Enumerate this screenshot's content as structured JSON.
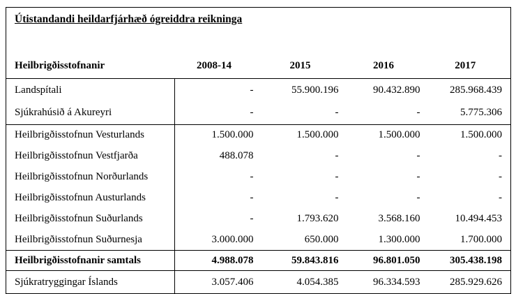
{
  "table": {
    "title": "Útistandandi heildarfjárhæð ógreiddra reikninga",
    "columns": [
      "Heilbrigðisstofnanir",
      "2008-14",
      "2015",
      "2016",
      "2017"
    ],
    "rows": [
      {
        "label": "Landspítali",
        "values": [
          "-",
          "55.900.196",
          "90.432.890",
          "285.968.439"
        ]
      },
      {
        "label": "Sjúkrahúsið á Akureyri",
        "values": [
          "-",
          "-",
          "-",
          "5.775.306"
        ]
      },
      {
        "label": "Heilbrigðisstofnun Vesturlands",
        "values": [
          "1.500.000",
          "1.500.000",
          "1.500.000",
          "1.500.000"
        ]
      },
      {
        "label": "Heilbrigðisstofnun Vestfjarða",
        "values": [
          "488.078",
          "-",
          "-",
          "-"
        ]
      },
      {
        "label": "Heilbrigðisstofnun Norðurlands",
        "values": [
          "-",
          "-",
          "-",
          "-"
        ]
      },
      {
        "label": "Heilbrigðisstofnun Austurlands",
        "values": [
          "-",
          "-",
          "-",
          "-"
        ]
      },
      {
        "label": "Heilbrigðisstofnun Suðurlands",
        "values": [
          "-",
          "1.793.620",
          "3.568.160",
          "10.494.453"
        ]
      },
      {
        "label": "Heilbrigðisstofnun Suðurnesja",
        "values": [
          "3.000.000",
          "650.000",
          "1.300.000",
          "1.700.000"
        ]
      }
    ],
    "total_row": {
      "label": "Heilbrigðisstofnanir samtals",
      "values": [
        "4.988.078",
        "59.843.816",
        "96.801.050",
        "305.438.198"
      ]
    },
    "footer_row": {
      "label": "Sjúkratryggingar Íslands",
      "values": [
        "3.057.406",
        "4.054.385",
        "96.334.593",
        "285.929.626"
      ]
    }
  },
  "colors": {
    "text": "#000000",
    "background": "#ffffff",
    "border": "#000000"
  }
}
